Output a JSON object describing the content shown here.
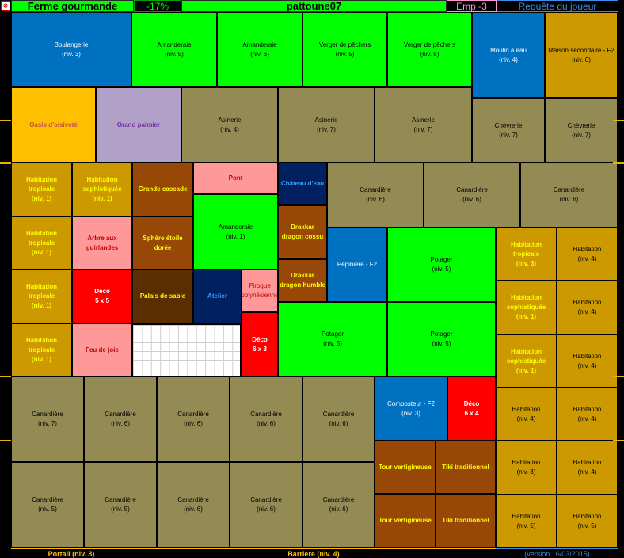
{
  "header": {
    "farm_name": "Ferme gourmande",
    "discount": "-17%",
    "player": "pattoune07",
    "emp": "Emp -3",
    "request": "Requête du joueur"
  },
  "footer": {
    "portal": "Portail (niv. 3)",
    "barrier": "Barrière (niv. 4)",
    "version": "(version 16/03/2015)"
  },
  "colors": {
    "blue": "#0070c0",
    "green": "#00ff00",
    "gold": "#cc9900",
    "olive": "#948a54",
    "yellow": "#ffc000",
    "lavender": "#b1a0c7",
    "brown": "#974706",
    "pink": "#ff9999",
    "red": "#ff0000",
    "navy": "#002060",
    "darkbrown": "#5c2d00"
  },
  "tiles": [
    {
      "name": "Boulangerie",
      "level": "(niv. 3)"
    },
    {
      "name": "Amanderaie",
      "level": "(niv. 5)"
    },
    {
      "name": "Amanderaie",
      "level": "(niv. 6)"
    },
    {
      "name": "Verger de pêchers",
      "level": "(niv. 5)"
    },
    {
      "name": "Verger de pêchers",
      "level": "(niv. 5)"
    },
    {
      "name": "Moulin à eau",
      "level": "(niv. 4)"
    },
    {
      "name": "Maison secondaire - F2",
      "level": "(niv. 6)"
    },
    {
      "name": "Oasis d'oisiveté",
      "level": ""
    },
    {
      "name": "Grand palmier",
      "level": ""
    },
    {
      "name": "Asinerie",
      "level": "(niv. 4)"
    },
    {
      "name": "Asinerie",
      "level": "(niv. 7)"
    },
    {
      "name": "Asinerie",
      "level": "(niv. 7)"
    },
    {
      "name": "Chèvrerie",
      "level": "(niv. 7)"
    },
    {
      "name": "Chèvrerie",
      "level": "(niv. 7)"
    },
    {
      "name": "Habitation tropicale",
      "level": "(niv. 1)"
    },
    {
      "name": "Habitation sophistiquée",
      "level": "(niv. 1)"
    },
    {
      "name": "Grande cascade",
      "level": ""
    },
    {
      "name": "Pont",
      "level": ""
    },
    {
      "name": "Château d'eau",
      "level": ""
    },
    {
      "name": "Canardière",
      "level": "(niv. 6)"
    },
    {
      "name": "Canardière",
      "level": "(niv. 6)"
    },
    {
      "name": "Canardière",
      "level": "(niv. 6)"
    },
    {
      "name": "Habitation tropicale",
      "level": "(niv. 1)"
    },
    {
      "name": "Arbre aux guirlandes",
      "level": ""
    },
    {
      "name": "Sphère étoile dorée",
      "level": ""
    },
    {
      "name": "Amanderaie",
      "level": "(niv. 1)"
    },
    {
      "name": "Drakkar dragon cossu",
      "level": ""
    },
    {
      "name": "Pépinière - F2",
      "level": ""
    },
    {
      "name": "Potager",
      "level": "(niv. 5)"
    },
    {
      "name": "Habitation tropicale",
      "level": "(niv. 3)"
    },
    {
      "name": "Habitation",
      "level": "(niv. 4)"
    },
    {
      "name": "Drakkar dragon humble",
      "level": ""
    },
    {
      "name": "Habitation tropicale",
      "level": "(niv. 1)"
    },
    {
      "name": "Déco",
      "level": "5 x 5"
    },
    {
      "name": "Palais de sable",
      "level": ""
    },
    {
      "name": "Atelier",
      "level": ""
    },
    {
      "name": "Pirogue polynésienne",
      "level": ""
    },
    {
      "name": "Habitation sophistiquée",
      "level": "(niv. 1)"
    },
    {
      "name": "Habitation",
      "level": "(niv. 4)"
    },
    {
      "name": "Potager",
      "level": "(niv. 5)"
    },
    {
      "name": "Potager",
      "level": "(niv. 5)"
    },
    {
      "name": "Habitation tropicale",
      "level": "(niv. 1)"
    },
    {
      "name": "Feu de joie",
      "level": ""
    },
    {
      "name": "Déco",
      "level": "6 x 3"
    },
    {
      "name": "Habitation sophistiquée",
      "level": "(niv. 1)"
    },
    {
      "name": "Habitation",
      "level": "(niv. 4)"
    },
    {
      "name": "Canardière",
      "level": "(niv. 7)"
    },
    {
      "name": "Canardière",
      "level": "(niv. 6)"
    },
    {
      "name": "Canardière",
      "level": "(niv. 6)"
    },
    {
      "name": "Canardière",
      "level": "(niv. 6)"
    },
    {
      "name": "Canardière",
      "level": "(niv. 6)"
    },
    {
      "name": "Composteur - F2",
      "level": "(niv. 3)"
    },
    {
      "name": "Déco",
      "level": "6 x 4"
    },
    {
      "name": "Habitation",
      "level": "(niv. 4)"
    },
    {
      "name": "Habitation",
      "level": "(niv. 4)"
    },
    {
      "name": "Canardière",
      "level": "(niv. 5)"
    },
    {
      "name": "Canardière",
      "level": "(niv. 5)"
    },
    {
      "name": "Canardière",
      "level": "(niv. 6)"
    },
    {
      "name": "Canardière",
      "level": "(niv. 6)"
    },
    {
      "name": "Canardière",
      "level": "(niv. 6)"
    },
    {
      "name": "Tour vertigineuse",
      "level": ""
    },
    {
      "name": "Tiki traditionnel",
      "level": ""
    },
    {
      "name": "Habitation",
      "level": "(niv. 3)"
    },
    {
      "name": "Habitation",
      "level": "(niv. 4)"
    },
    {
      "name": "Tour vertigineuse",
      "level": ""
    },
    {
      "name": "Tiki traditionnel",
      "level": ""
    },
    {
      "name": "Habitation",
      "level": "(niv. 5)"
    },
    {
      "name": "Habitation",
      "level": "(niv. 5)"
    }
  ]
}
